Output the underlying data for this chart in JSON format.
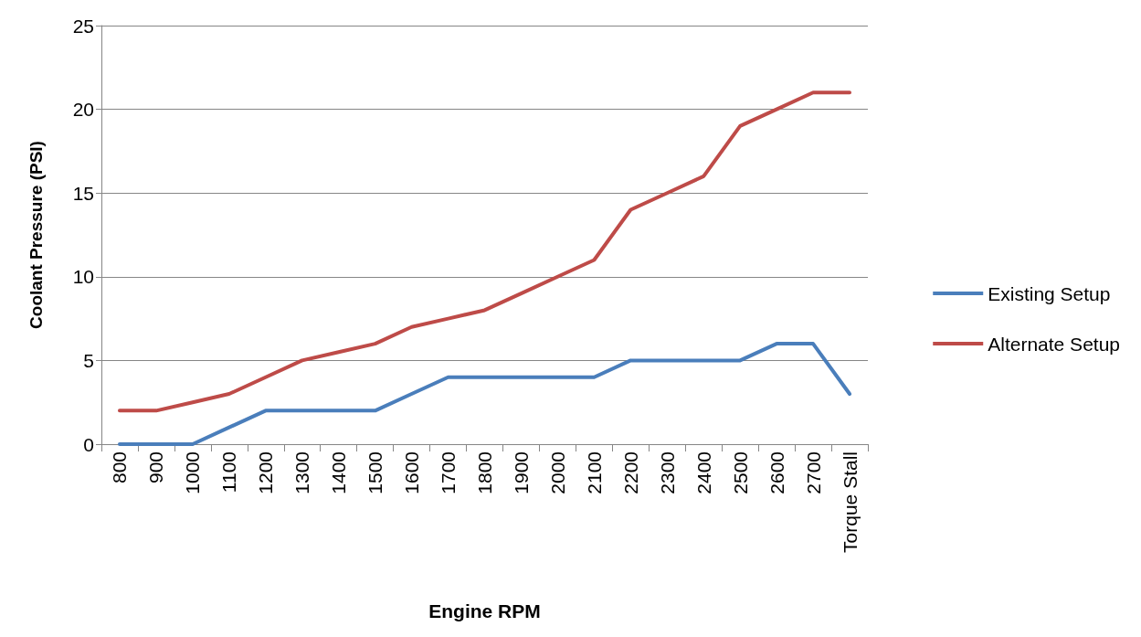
{
  "chart_data": {
    "type": "line",
    "xlabel": "Engine RPM",
    "ylabel": "Coolant Pressure (PSI)",
    "categories": [
      "800",
      "900",
      "1000",
      "1100",
      "1200",
      "1300",
      "1400",
      "1500",
      "1600",
      "1700",
      "1800",
      "1900",
      "2000",
      "2100",
      "2200",
      "2300",
      "2400",
      "2500",
      "2600",
      "2700",
      "Torque Stall"
    ],
    "series": [
      {
        "name": "Existing Setup",
        "color": "#4a7ebb",
        "values": [
          0,
          0,
          0,
          1,
          2,
          2,
          2,
          2,
          3,
          4,
          4,
          4,
          4,
          4,
          5,
          5,
          5,
          5,
          6,
          6,
          3
        ]
      },
      {
        "name": "Alternate Setup",
        "color": "#be4b48",
        "values": [
          2,
          2,
          2.5,
          3,
          4,
          5,
          5.5,
          6,
          7,
          7.5,
          8,
          9,
          10,
          11,
          14,
          15,
          16,
          19,
          20,
          21,
          21
        ]
      }
    ],
    "ylim": [
      0,
      25
    ],
    "yticks": [
      0,
      5,
      10,
      15,
      20,
      25
    ],
    "grid": "y",
    "legend": "right",
    "marker": "none",
    "line_style": "solid"
  }
}
